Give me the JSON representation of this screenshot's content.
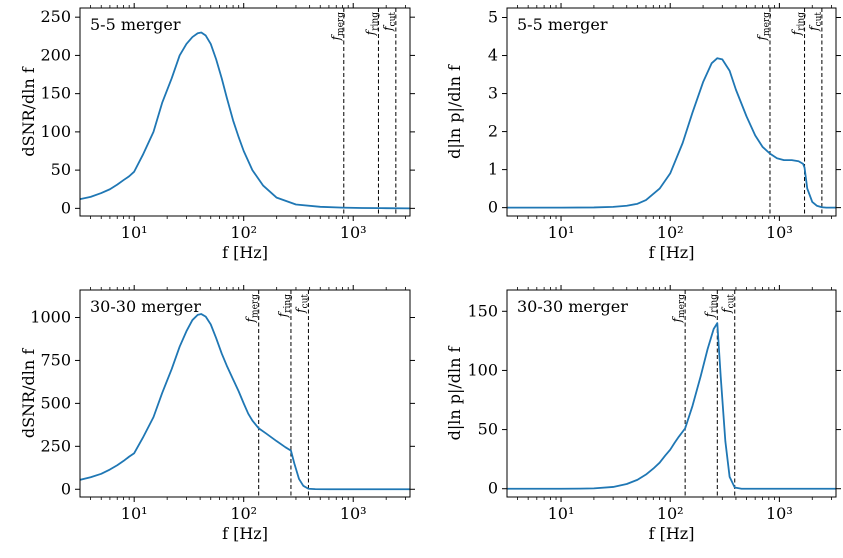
{
  "chart_data": [
    {
      "type": "line",
      "title": "5-5 merger",
      "xlabel": "f [Hz]",
      "ylabel": "dSNR/dln f",
      "xscale": "log",
      "xlim": [
        3.2,
        3300
      ],
      "ylim": [
        -10,
        262
      ],
      "xticks": [
        {
          "v": 10,
          "label": "10¹"
        },
        {
          "v": 100,
          "label": "10²"
        },
        {
          "v": 1000,
          "label": "10³"
        }
      ],
      "yticks": [
        {
          "v": 0,
          "label": "0"
        },
        {
          "v": 50,
          "label": "50"
        },
        {
          "v": 100,
          "label": "100"
        },
        {
          "v": 150,
          "label": "150"
        },
        {
          "v": 200,
          "label": "200"
        },
        {
          "v": 250,
          "label": "250"
        }
      ],
      "vlines": [
        {
          "label": "f_merg",
          "x": 820
        },
        {
          "label": "f_ring",
          "x": 1700
        },
        {
          "label": "f_cut",
          "x": 2450
        }
      ],
      "series": [
        {
          "x": [
            3.2,
            4,
            5,
            6,
            7,
            8,
            9,
            10,
            12,
            15,
            18,
            22,
            26,
            30,
            34,
            38,
            41,
            45,
            50,
            56,
            63,
            70,
            80,
            90,
            100,
            120,
            150,
            200,
            300,
            500,
            800,
            1200,
            2000,
            3300
          ],
          "y": [
            12,
            15,
            20,
            25,
            31,
            37,
            42,
            48,
            70,
            100,
            138,
            170,
            200,
            215,
            224,
            229,
            230,
            226,
            215,
            195,
            170,
            145,
            115,
            93,
            75,
            50,
            30,
            14,
            5,
            2,
            1,
            0.5,
            0.2,
            0
          ]
        }
      ]
    },
    {
      "type": "line",
      "title": "5-5 merger",
      "xlabel": "f [Hz]",
      "ylabel": "d|ln p|/dln f",
      "xscale": "log",
      "xlim": [
        3.2,
        3300
      ],
      "ylim": [
        -0.22,
        5.25
      ],
      "xticks": [
        {
          "v": 10,
          "label": "10¹"
        },
        {
          "v": 100,
          "label": "10²"
        },
        {
          "v": 1000,
          "label": "10³"
        }
      ],
      "yticks": [
        {
          "v": 0,
          "label": "0"
        },
        {
          "v": 1,
          "label": "1"
        },
        {
          "v": 2,
          "label": "2"
        },
        {
          "v": 3,
          "label": "3"
        },
        {
          "v": 4,
          "label": "4"
        },
        {
          "v": 5,
          "label": "5"
        }
      ],
      "vlines": [
        {
          "label": "f_merg",
          "x": 820
        },
        {
          "label": "f_ring",
          "x": 1700
        },
        {
          "label": "f_cut",
          "x": 2450
        }
      ],
      "series": [
        {
          "x": [
            3.2,
            10,
            20,
            30,
            40,
            50,
            60,
            80,
            100,
            130,
            160,
            200,
            240,
            270,
            300,
            350,
            400,
            500,
            600,
            700,
            820,
            950,
            1100,
            1300,
            1500,
            1650,
            1700,
            1800,
            2000,
            2200,
            2450,
            2700,
            3300
          ],
          "y": [
            0,
            0,
            0.005,
            0.02,
            0.05,
            0.1,
            0.2,
            0.5,
            0.9,
            1.7,
            2.5,
            3.3,
            3.8,
            3.93,
            3.9,
            3.6,
            3.1,
            2.4,
            1.9,
            1.6,
            1.42,
            1.3,
            1.25,
            1.25,
            1.22,
            1.15,
            1.05,
            0.5,
            0.15,
            0.05,
            0.01,
            0,
            0
          ]
        }
      ]
    },
    {
      "type": "line",
      "title": "30-30 merger",
      "xlabel": "f [Hz]",
      "ylabel": "dSNR/dln f",
      "xscale": "log",
      "xlim": [
        3.2,
        3300
      ],
      "ylim": [
        -45,
        1160
      ],
      "xticks": [
        {
          "v": 10,
          "label": "10¹"
        },
        {
          "v": 100,
          "label": "10²"
        },
        {
          "v": 1000,
          "label": "10³"
        }
      ],
      "yticks": [
        {
          "v": 0,
          "label": "0"
        },
        {
          "v": 250,
          "label": "250"
        },
        {
          "v": 500,
          "label": "500"
        },
        {
          "v": 750,
          "label": "750"
        },
        {
          "v": 1000,
          "label": "1000"
        }
      ],
      "vlines": [
        {
          "label": "f_merg",
          "x": 137
        },
        {
          "label": "f_ring",
          "x": 270
        },
        {
          "label": "f_cut",
          "x": 390
        }
      ],
      "series": [
        {
          "x": [
            3.2,
            4,
            5,
            6,
            7,
            8,
            9,
            10,
            12,
            15,
            18,
            22,
            26,
            30,
            34,
            38,
            41,
            45,
            50,
            56,
            63,
            70,
            80,
            90,
            100,
            110,
            120,
            137,
            160,
            200,
            240,
            270,
            290,
            320,
            350,
            390,
            450,
            600,
            1000,
            2000,
            3300
          ],
          "y": [
            55,
            70,
            90,
            115,
            140,
            165,
            190,
            210,
            300,
            420,
            560,
            700,
            830,
            920,
            985,
            1015,
            1020,
            1005,
            960,
            880,
            790,
            720,
            640,
            570,
            500,
            440,
            400,
            355,
            325,
            280,
            245,
            225,
            150,
            60,
            20,
            3,
            1,
            0,
            0,
            0,
            0
          ]
        }
      ]
    },
    {
      "type": "line",
      "title": "30-30 merger",
      "xlabel": "f [Hz]",
      "ylabel": "d|ln p|/dln f",
      "xscale": "log",
      "xlim": [
        3.2,
        3300
      ],
      "ylim": [
        -7,
        168
      ],
      "xticks": [
        {
          "v": 10,
          "label": "10¹"
        },
        {
          "v": 100,
          "label": "10²"
        },
        {
          "v": 1000,
          "label": "10³"
        }
      ],
      "yticks": [
        {
          "v": 0,
          "label": "0"
        },
        {
          "v": 50,
          "label": "50"
        },
        {
          "v": 100,
          "label": "100"
        },
        {
          "v": 150,
          "label": "150"
        }
      ],
      "vlines": [
        {
          "label": "f_merg",
          "x": 137
        },
        {
          "label": "f_ring",
          "x": 270
        },
        {
          "label": "f_cut",
          "x": 390
        }
      ],
      "series": [
        {
          "x": [
            3.2,
            10,
            15,
            20,
            30,
            40,
            50,
            60,
            70,
            80,
            90,
            100,
            110,
            120,
            137,
            160,
            190,
            220,
            250,
            270,
            290,
            320,
            350,
            390,
            450,
            1000,
            3300
          ],
          "y": [
            0,
            0,
            0.05,
            0.3,
            1.5,
            4,
            7.5,
            12,
            17,
            22,
            28,
            33,
            39,
            44,
            51,
            70,
            95,
            118,
            135,
            140,
            95,
            40,
            10,
            1,
            0,
            0,
            0
          ]
        }
      ]
    }
  ]
}
